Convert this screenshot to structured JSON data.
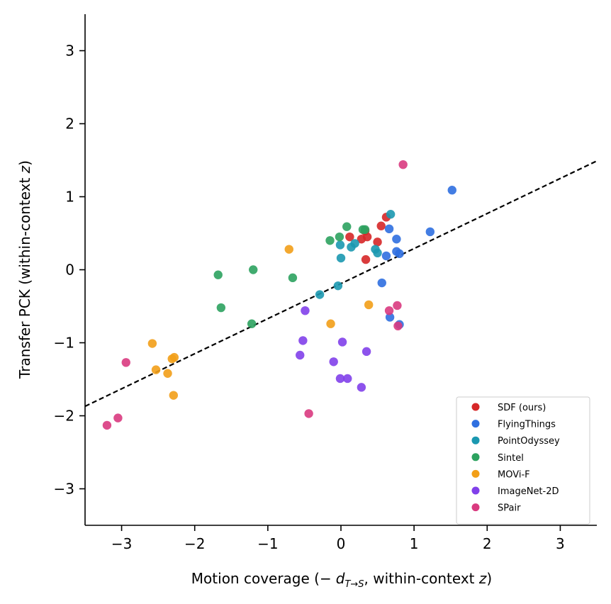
{
  "chart_data": {
    "type": "scatter",
    "title": "",
    "xlabel": {
      "prefix": "Motion coverage (",
      "minus": "−",
      "d": "d",
      "sub": "T→S",
      "mid": ", within-context ",
      "z": "z",
      "suffix": ")"
    },
    "ylabel": {
      "prefix": "Transfer PCK (within-context ",
      "z": "z",
      "suffix": ")"
    },
    "xlim": [
      -3.5,
      3.5
    ],
    "ylim": [
      -3.5,
      3.5
    ],
    "xticks": [
      -3,
      -2,
      -1,
      0,
      1,
      2,
      3
    ],
    "yticks": [
      -3,
      -2,
      -1,
      0,
      1,
      2,
      3
    ],
    "xtick_labels": [
      "−3",
      "−2",
      "−1",
      "0",
      "1",
      "2",
      "3"
    ],
    "ytick_labels": [
      "−3",
      "−2",
      "−1",
      "0",
      "1",
      "2",
      "3"
    ],
    "grid": false,
    "legend_position": "bottom-right",
    "trend_line": {
      "style": "dashed",
      "color": "#000000",
      "points": [
        [
          -3.5,
          -1.87
        ],
        [
          3.5,
          1.49
        ]
      ]
    },
    "series": [
      {
        "name": "SDF (ours)",
        "color": "#d62728",
        "points": [
          [
            0.12,
            0.45
          ],
          [
            0.28,
            0.42
          ],
          [
            0.33,
            0.53
          ],
          [
            0.36,
            0.45
          ],
          [
            0.34,
            0.14
          ],
          [
            0.5,
            0.38
          ],
          [
            0.55,
            0.6
          ],
          [
            0.62,
            0.72
          ]
        ]
      },
      {
        "name": "FlyingThings",
        "color": "#2f6fe0",
        "points": [
          [
            1.52,
            1.09
          ],
          [
            1.22,
            0.52
          ],
          [
            0.66,
            0.56
          ],
          [
            0.76,
            0.42
          ],
          [
            0.62,
            0.19
          ],
          [
            0.76,
            0.25
          ],
          [
            0.8,
            0.22
          ],
          [
            0.56,
            -0.18
          ],
          [
            0.67,
            -0.65
          ],
          [
            0.8,
            -0.75
          ]
        ]
      },
      {
        "name": "PointOdyssey",
        "color": "#1b98b0",
        "points": [
          [
            0.68,
            0.76
          ],
          [
            0.47,
            0.28
          ],
          [
            0.5,
            0.23
          ],
          [
            0.14,
            0.31
          ],
          [
            0.19,
            0.36
          ],
          [
            -0.01,
            0.34
          ],
          [
            0.0,
            0.16
          ],
          [
            -0.04,
            -0.22
          ],
          [
            -0.29,
            -0.34
          ]
        ]
      },
      {
        "name": "Sintel",
        "color": "#2ca25f",
        "points": [
          [
            0.08,
            0.59
          ],
          [
            0.3,
            0.55
          ],
          [
            0.33,
            0.55
          ],
          [
            -0.02,
            0.45
          ],
          [
            -0.15,
            0.4
          ],
          [
            -0.66,
            -0.11
          ],
          [
            -1.2,
            0.0
          ],
          [
            -1.68,
            -0.07
          ],
          [
            -1.64,
            -0.52
          ],
          [
            -1.22,
            -0.74
          ]
        ]
      },
      {
        "name": "MOVi-F",
        "color": "#f29f18",
        "points": [
          [
            -0.71,
            0.28
          ],
          [
            0.38,
            -0.48
          ],
          [
            -0.14,
            -0.74
          ],
          [
            -2.58,
            -1.01
          ],
          [
            -2.28,
            -1.2
          ],
          [
            -2.31,
            -1.22
          ],
          [
            -2.53,
            -1.37
          ],
          [
            -2.37,
            -1.42
          ],
          [
            -2.29,
            -1.72
          ]
        ]
      },
      {
        "name": "ImageNet-2D",
        "color": "#8140ea",
        "points": [
          [
            -0.49,
            -0.56
          ],
          [
            -0.52,
            -0.97
          ],
          [
            0.02,
            -0.99
          ],
          [
            -0.56,
            -1.17
          ],
          [
            0.35,
            -1.12
          ],
          [
            -0.1,
            -1.26
          ],
          [
            -0.01,
            -1.49
          ],
          [
            0.09,
            -1.49
          ],
          [
            0.28,
            -1.61
          ]
        ]
      },
      {
        "name": "SPair",
        "color": "#d93a7f",
        "points": [
          [
            0.85,
            1.44
          ],
          [
            0.66,
            -0.56
          ],
          [
            0.77,
            -0.49
          ],
          [
            0.78,
            -0.77
          ],
          [
            -2.94,
            -1.27
          ],
          [
            -0.44,
            -1.97
          ],
          [
            -3.05,
            -2.03
          ],
          [
            -3.2,
            -2.13
          ]
        ]
      }
    ]
  }
}
